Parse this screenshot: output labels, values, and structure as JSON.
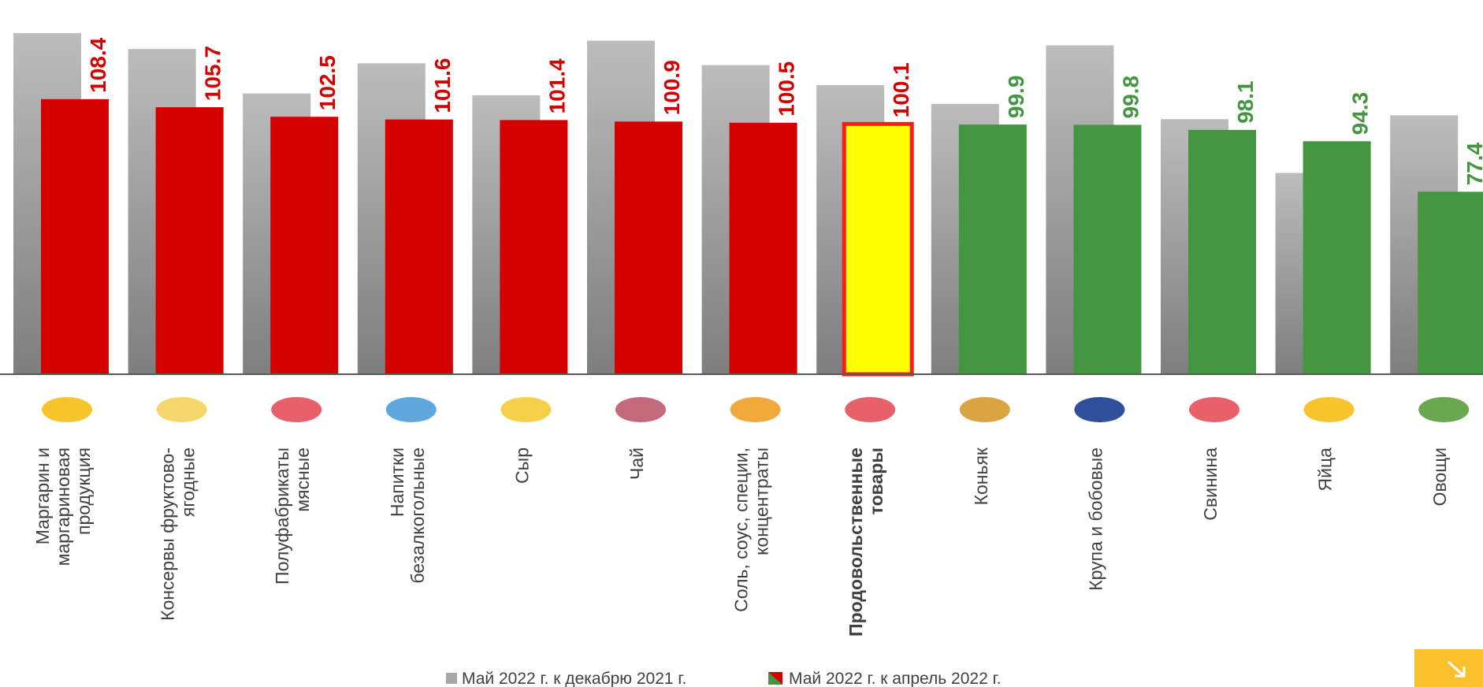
{
  "chart_data": {
    "type": "bar",
    "categories": [
      [
        "Маргарин и",
        "маргариновая",
        "продукция"
      ],
      [
        "Консервы фруктово-",
        "ягодные"
      ],
      [
        "Полуфабрикаты",
        "мясные"
      ],
      [
        "Напитки",
        "безалкогольные"
      ],
      [
        "Сыр"
      ],
      [
        "Чай"
      ],
      [
        "Соль, соус, специи,",
        "концентраты"
      ],
      [
        "Продовольственные",
        "товары"
      ],
      [
        "Коньяк"
      ],
      [
        "Крупа и бобовые"
      ],
      [
        "Свинина"
      ],
      [
        "Яйца"
      ],
      [
        "Овощи"
      ]
    ],
    "bold_category": 7,
    "ylim": [
      16.3,
      141.6
    ],
    "series": [
      {
        "name": "Май 2022 г. к декабрю 2021 г.",
        "color": "#a6a6a6",
        "values": [
          130.5,
          125.2,
          110.3,
          120.4,
          109.7,
          128.0,
          119.8,
          113.1,
          106.8,
          126.4,
          101.7,
          83.7,
          103.0
        ]
      },
      {
        "name": "Май 2022 г. к апрель 2022 г.",
        "colors": [
          "#d40000",
          "#d40000",
          "#d40000",
          "#d40000",
          "#d40000",
          "#d40000",
          "#d40000",
          "#ffff00",
          "#43963f",
          "#43963f",
          "#43963f",
          "#43963f",
          "#43963f"
        ],
        "label_colors": [
          "#d40000",
          "#d40000",
          "#d40000",
          "#d40000",
          "#d40000",
          "#d40000",
          "#d40000",
          "#d40000",
          "#43963f",
          "#43963f",
          "#43963f",
          "#43963f",
          "#43963f"
        ],
        "values": [
          108.4,
          105.7,
          102.5,
          101.6,
          101.4,
          100.9,
          100.5,
          100.1,
          99.9,
          99.8,
          98.1,
          94.3,
          77.4
        ]
      }
    ]
  }
}
